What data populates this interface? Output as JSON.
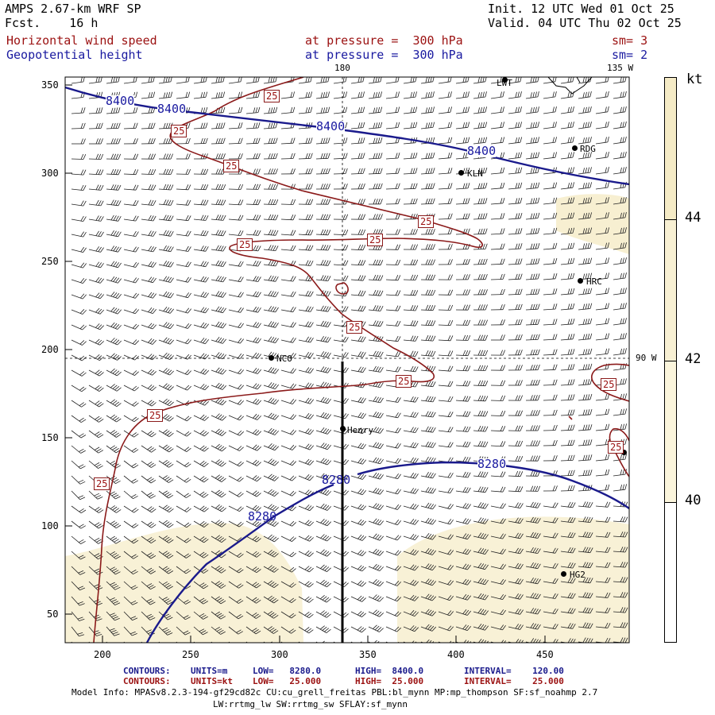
{
  "header": {
    "model_title": "AMPS 2.67-km WRF SP",
    "init_label": "Init. 12 UTC Wed 01 Oct 25",
    "fcst_label": "Fcst.    16 h",
    "valid_label": "Valid. 04 UTC Thu 02 Oct 25"
  },
  "fields": [
    {
      "name": "Horizontal wind speed",
      "level": "at pressure =  300 hPa",
      "smooth": "sm= 3",
      "color": "#9b1111"
    },
    {
      "name": "Geopotential height",
      "level": "at pressure =  300 hPa",
      "smooth": "sm= 2",
      "color": "#1a1aa0"
    }
  ],
  "map": {
    "longitude_labels": {
      "top_180": "180",
      "top_135w": "135 W",
      "right_90w": "90 W"
    },
    "x_ticks": [
      "200",
      "250",
      "300",
      "350",
      "400",
      "450"
    ],
    "y_ticks": [
      "350",
      "300",
      "250",
      "200",
      "150",
      "100",
      "50"
    ],
    "stations": [
      "LWT",
      "RDG",
      "KLN",
      "HRC",
      "NCO",
      "Henry",
      "HG2"
    ],
    "height_contour_labels": [
      "8400",
      "8400",
      "8400",
      "8400",
      "8280",
      "8280",
      "8280"
    ],
    "speed_contour_labels": [
      "25",
      "25",
      "25",
      "25",
      "25",
      "25",
      "25",
      "25",
      "25",
      "25",
      "25",
      "25"
    ]
  },
  "colorbar": {
    "unit": "kt",
    "labels": [
      "44",
      "42",
      "40"
    ],
    "fill_colors": [
      "#ffffff",
      "#fbf5dc",
      "#f5ebc6"
    ]
  },
  "footer": {
    "contours_height": {
      "label": "CONTOURS:",
      "units": "UNITS=m",
      "low": "LOW=   8280.0",
      "high": "HIGH=  8400.0",
      "interval": "INTERVAL=    120.00"
    },
    "contours_speed": {
      "label": "CONTOURS:",
      "units": "UNITS=kt",
      "low": "LOW=   25.000",
      "high": "HIGH=  25.000",
      "interval": "INTERVAL=    25.000"
    },
    "model_info_1": "Model Info: MPASv8.2.3-194-gf29cd82c CU:cu_grell_freitas PBL:bl_mynn MP:mp_thompson SF:sf_noahmp 2.7",
    "model_info_2": "LW:rrtmg_lw SW:rrtmg_sw SFLAY:sf_mynn"
  }
}
